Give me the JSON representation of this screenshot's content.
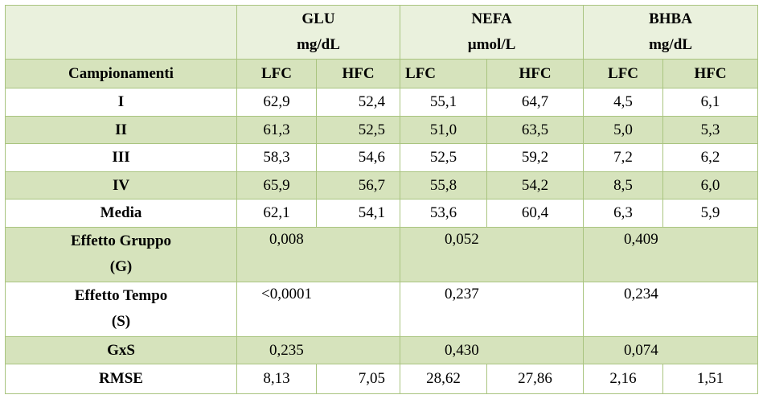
{
  "groups": [
    {
      "name": "GLU",
      "unit": "mg/dL"
    },
    {
      "name": "NEFA",
      "unit": "µmol/L"
    },
    {
      "name": "BHBA",
      "unit": "mg/dL"
    }
  ],
  "subheader": {
    "first_col": "Campionamenti",
    "cols": [
      "LFC",
      "HFC",
      "LFC",
      "HFC",
      "LFC",
      "HFC"
    ]
  },
  "rows": [
    {
      "label": "I",
      "values": [
        "62,9",
        "52,4",
        "55,1",
        "64,7",
        "4,5",
        "6,1"
      ]
    },
    {
      "label": "II",
      "values": [
        "61,3",
        "52,5",
        "51,0",
        "63,5",
        "5,0",
        "5,3"
      ]
    },
    {
      "label": "III",
      "values": [
        "58,3",
        "54,6",
        "52,5",
        "59,2",
        "7,2",
        "6,2"
      ]
    },
    {
      "label": "IV",
      "values": [
        "65,9",
        "56,7",
        "55,8",
        "54,2",
        "8,5",
        "6,0"
      ]
    },
    {
      "label": "Media",
      "values": [
        "62,1",
        "54,1",
        "53,6",
        "60,4",
        "6,3",
        "5,9"
      ]
    }
  ],
  "effects": [
    {
      "label_line1": "Effetto Gruppo",
      "label_line2": "(G)",
      "values": [
        "0,008",
        "0,052",
        "0,409"
      ]
    },
    {
      "label_line1": "Effetto Tempo",
      "label_line2": "(S)",
      "values": [
        "<0,0001",
        "0,237",
        "0,234"
      ]
    }
  ],
  "gxs": {
    "label": "GxS",
    "values": [
      "0,235",
      "0,430",
      "0,074"
    ]
  },
  "rmse": {
    "label": "RMSE",
    "values": [
      "8,13",
      "7,05",
      "28,62",
      "27,86",
      "2,16",
      "1,51"
    ]
  }
}
